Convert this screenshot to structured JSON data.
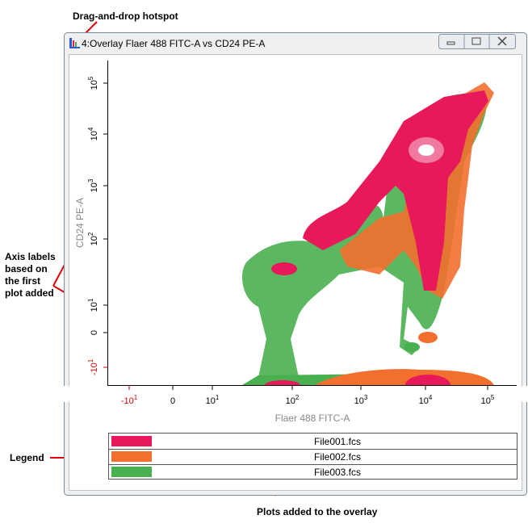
{
  "annotations": {
    "hotspot": "Drag-and-drop hotspot",
    "axis_labels": [
      "Axis labels",
      "based on",
      "the first",
      "plot added"
    ],
    "legend": "Legend",
    "plots": "Plots added to the overlay"
  },
  "window": {
    "title": "4:Overlay Flaer 488 FITC-A vs CD24 PE-A"
  },
  "plot": {
    "x_label": "Flaer 488 FITC-A",
    "y_label": "CD24 PE-A",
    "xticks": [
      {
        "base": "-10",
        "exp": "1",
        "color": "#cc0000"
      },
      {
        "base": "0",
        "color": "#000000"
      },
      {
        "base": "10",
        "exp": "1",
        "color": "#000000"
      },
      {
        "base": "10",
        "exp": "2",
        "color": "#000000"
      },
      {
        "base": "10",
        "exp": "3",
        "color": "#000000"
      },
      {
        "base": "10",
        "exp": "4",
        "color": "#000000"
      },
      {
        "base": "10",
        "exp": "5",
        "color": "#000000"
      }
    ],
    "yticks": [
      {
        "base": "-10",
        "exp": "1",
        "color": "#cc0000"
      },
      {
        "base": "0",
        "color": "#000000"
      },
      {
        "base": "10",
        "exp": "1",
        "color": "#000000"
      },
      {
        "base": "10",
        "exp": "2",
        "color": "#000000"
      },
      {
        "base": "10",
        "exp": "3",
        "color": "#000000"
      },
      {
        "base": "10",
        "exp": "4",
        "color": "#000000"
      },
      {
        "base": "10",
        "exp": "5",
        "color": "#000000"
      }
    ]
  },
  "legend": [
    {
      "name": "File001.fcs",
      "color": "#e8195a"
    },
    {
      "name": "File002.fcs",
      "color": "#f26f2e"
    },
    {
      "name": "File003.fcs",
      "color": "#49b050"
    }
  ]
}
